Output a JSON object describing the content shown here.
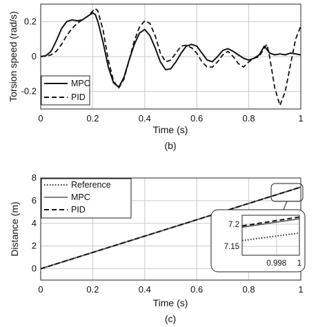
{
  "figure_labels": {
    "b": "(b)",
    "c": "(c)"
  },
  "chart_data": [
    {
      "type": "line",
      "xlabel": "Time (s)",
      "ylabel": "Torsion speed (rad/s)",
      "xlim": [
        0,
        1
      ],
      "ylim": [
        -0.3,
        0.3
      ],
      "xticks": [
        0,
        0.2,
        0.4,
        0.6,
        0.8,
        1
      ],
      "xtick_labels": [
        "0",
        "0.2",
        "0.4",
        "0.6",
        "0.8",
        "1"
      ],
      "yticks": [
        -0.2,
        0,
        0.2
      ],
      "ytick_labels": [
        "-0.2",
        "0",
        "0.2"
      ],
      "grid": true,
      "legend_position": "bottom-left",
      "series": [
        {
          "name": "MPC",
          "style": "solid",
          "x": [
            0,
            0.02,
            0.04,
            0.06,
            0.08,
            0.1,
            0.12,
            0.14,
            0.16,
            0.18,
            0.2,
            0.21,
            0.22,
            0.24,
            0.26,
            0.28,
            0.3,
            0.32,
            0.34,
            0.36,
            0.38,
            0.4,
            0.42,
            0.44,
            0.46,
            0.48,
            0.5,
            0.52,
            0.54,
            0.56,
            0.58,
            0.6,
            0.62,
            0.64,
            0.66,
            0.68,
            0.7,
            0.72,
            0.74,
            0.76,
            0.78,
            0.8,
            0.82,
            0.84,
            0.86,
            0.88,
            0.9,
            0.92,
            0.94,
            0.96,
            0.98,
            1.0
          ],
          "y": [
            0,
            0.005,
            0.03,
            0.09,
            0.16,
            0.2,
            0.21,
            0.205,
            0.21,
            0.23,
            0.25,
            0.24,
            0.2,
            0.08,
            -0.06,
            -0.15,
            -0.175,
            -0.12,
            -0.02,
            0.07,
            0.135,
            0.155,
            0.12,
            0.05,
            -0.03,
            -0.075,
            -0.07,
            -0.03,
            0.02,
            0.06,
            0.07,
            0.06,
            0.02,
            -0.02,
            -0.03,
            0.0,
            0.035,
            0.045,
            0.03,
            0.01,
            -0.01,
            -0.02,
            -0.01,
            0.01,
            0.06,
            0.02,
            0.01,
            0.015,
            0.01,
            0.02,
            0.015,
            0.01
          ]
        },
        {
          "name": "PID",
          "style": "dashed",
          "x": [
            0,
            0.02,
            0.04,
            0.06,
            0.08,
            0.1,
            0.12,
            0.14,
            0.16,
            0.18,
            0.2,
            0.21,
            0.22,
            0.24,
            0.26,
            0.28,
            0.3,
            0.32,
            0.34,
            0.36,
            0.38,
            0.4,
            0.42,
            0.44,
            0.46,
            0.48,
            0.5,
            0.52,
            0.54,
            0.56,
            0.58,
            0.6,
            0.62,
            0.64,
            0.66,
            0.68,
            0.7,
            0.72,
            0.74,
            0.76,
            0.78,
            0.8,
            0.82,
            0.84,
            0.86,
            0.87,
            0.88,
            0.9,
            0.92,
            0.94,
            0.96,
            0.98,
            1.0
          ],
          "y": [
            0,
            0.002,
            0.01,
            0.03,
            0.07,
            0.12,
            0.16,
            0.19,
            0.21,
            0.23,
            0.26,
            0.275,
            0.26,
            0.15,
            -0.02,
            -0.14,
            -0.18,
            -0.13,
            -0.02,
            0.09,
            0.17,
            0.205,
            0.19,
            0.12,
            0.02,
            -0.03,
            -0.02,
            0.02,
            0.06,
            0.065,
            0.05,
            0.02,
            -0.03,
            -0.06,
            -0.06,
            -0.03,
            0.01,
            0.03,
            0.0,
            -0.04,
            -0.06,
            -0.03,
            -0.01,
            0.0,
            0.05,
            0.07,
            0.0,
            -0.18,
            -0.28,
            -0.2,
            -0.05,
            0.1,
            0.175
          ]
        }
      ]
    },
    {
      "type": "line",
      "xlabel": "Time (s)",
      "ylabel": "Distance (m)",
      "xlim": [
        0,
        1
      ],
      "ylim": [
        -1,
        8
      ],
      "xticks": [
        0,
        0.2,
        0.4,
        0.6,
        0.8,
        1
      ],
      "xtick_labels": [
        "0",
        "0.2",
        "0.4",
        "0.6",
        "0.8",
        "1"
      ],
      "yticks": [
        0,
        2,
        4,
        6,
        8
      ],
      "ytick_labels": [
        "0",
        "2",
        "4",
        "6",
        "8"
      ],
      "grid": true,
      "legend_position": "top-left",
      "series": [
        {
          "name": "Reference",
          "style": "dotted",
          "x": [
            0,
            1
          ],
          "y": [
            0,
            7.2
          ]
        },
        {
          "name": "MPC",
          "style": "solid",
          "x": [
            0,
            1
          ],
          "y": [
            0,
            7.2
          ]
        },
        {
          "name": "PID",
          "style": "dashed",
          "x": [
            0,
            1
          ],
          "y": [
            0,
            7.2
          ]
        }
      ],
      "inset": {
        "xlim": [
          0.995,
          1.0
        ],
        "ylim": [
          7.13,
          7.22
        ],
        "xticks": [
          0.998,
          1.0
        ],
        "xtick_labels": [
          "0.998",
          "1"
        ],
        "yticks": [
          7.15,
          7.2
        ],
        "ytick_labels": [
          "7.15",
          "7.2"
        ],
        "series": [
          {
            "name": "Reference",
            "style": "dotted",
            "x": [
              0.995,
              1.0
            ],
            "y": [
              7.163,
              7.18
            ]
          },
          {
            "name": "MPC",
            "style": "solid",
            "x": [
              0.995,
              1.0
            ],
            "y": [
              7.193,
              7.212
            ]
          },
          {
            "name": "PID",
            "style": "dashed",
            "x": [
              0.995,
              1.0
            ],
            "y": [
              7.196,
              7.216
            ]
          }
        ]
      }
    }
  ]
}
